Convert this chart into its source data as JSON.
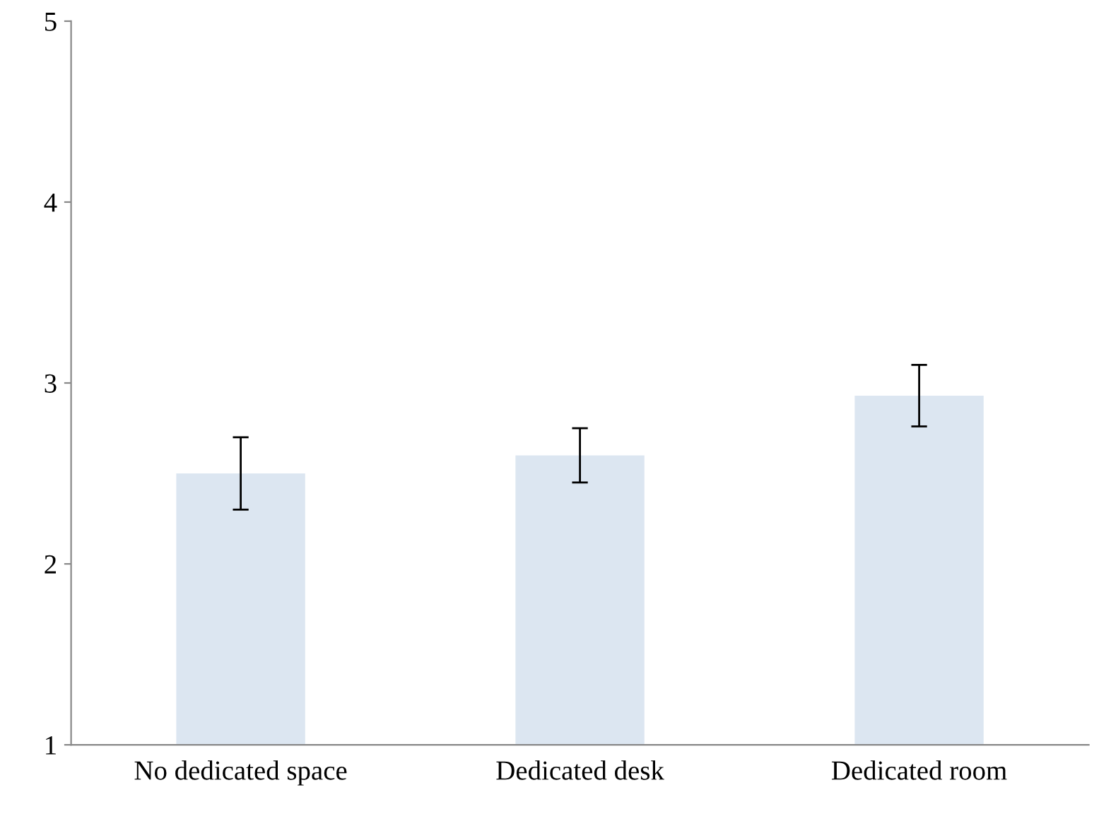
{
  "chart_data": {
    "type": "bar",
    "categories": [
      "No dedicated space",
      "Dedicated desk",
      "Dedicated room"
    ],
    "values": [
      2.5,
      2.6,
      2.93
    ],
    "errors": [
      0.2,
      0.15,
      0.17
    ],
    "color": "#dce6f1",
    "ylim": [
      1,
      5
    ],
    "yticks": [
      1,
      2,
      3,
      4,
      5
    ],
    "grid": false,
    "legend": false
  }
}
